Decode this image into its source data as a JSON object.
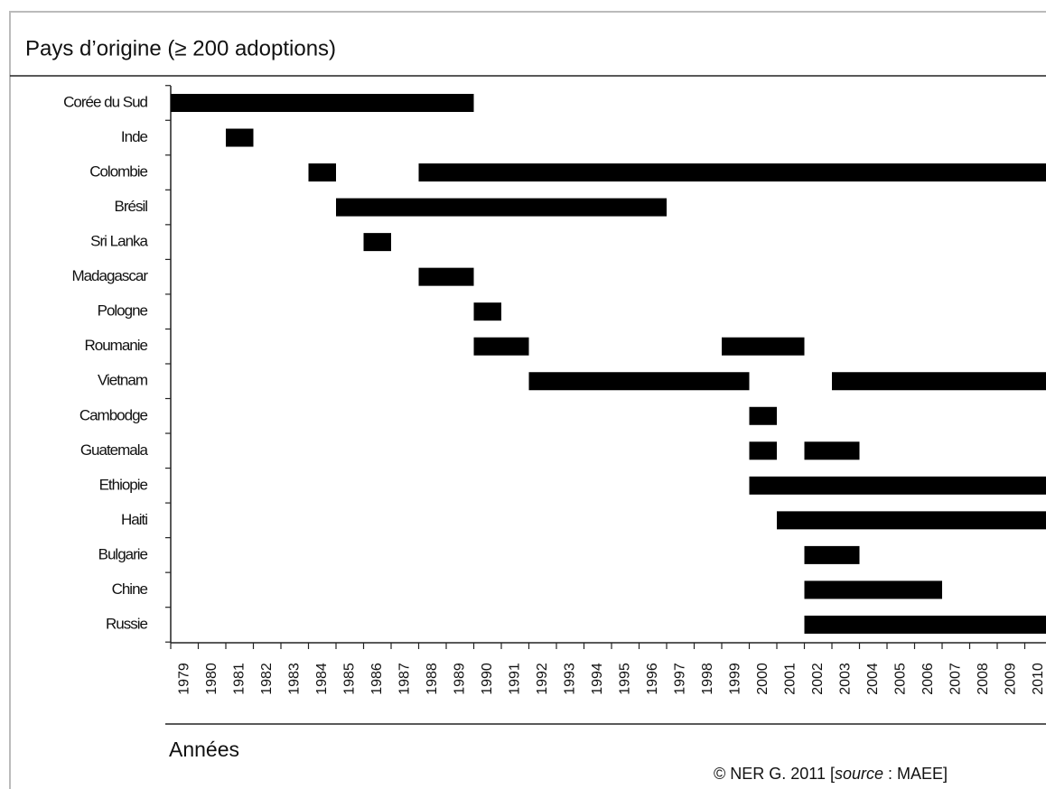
{
  "chart_data": {
    "type": "gantt",
    "title": "Pays d’origine (≥ 200 adoptions)",
    "x_label": "Années",
    "credit": [
      "© NER G. 2011 [",
      "source",
      " : MAEE]"
    ],
    "color": "#000000",
    "categories": [
      "Corée  du Sud",
      "Inde",
      "Colombie",
      "Brésil",
      "Sri Lanka",
      "Madagascar",
      "Pologne",
      "Roumanie",
      "Vietnam",
      "Cambodge",
      "Guatemala",
      "Ethiopie",
      "Haiti",
      "Bulgarie",
      "Chine",
      "Russie"
    ],
    "ranges": [
      [
        [
          1979,
          1990
        ]
      ],
      [
        [
          1981,
          1982
        ]
      ],
      [
        [
          1984,
          1985
        ],
        [
          1988,
          2011
        ]
      ],
      [
        [
          1985,
          1997
        ]
      ],
      [
        [
          1986,
          1987
        ]
      ],
      [
        [
          1988,
          1990
        ]
      ],
      [
        [
          1990,
          1991
        ]
      ],
      [
        [
          1990,
          1992
        ],
        [
          1999,
          2002
        ]
      ],
      [
        [
          1992,
          2000
        ],
        [
          2003,
          2011
        ]
      ],
      [
        [
          2000,
          2001
        ]
      ],
      [
        [
          2000,
          2001
        ],
        [
          2002,
          2004
        ]
      ],
      [
        [
          2000,
          2011
        ]
      ],
      [
        [
          2001,
          2011
        ]
      ],
      [
        [
          2002,
          2004
        ]
      ],
      [
        [
          2002,
          2007
        ]
      ],
      [
        [
          2002,
          2011
        ]
      ]
    ],
    "xlim": [
      1979,
      2011
    ],
    "xticks": [
      1979,
      1980,
      1981,
      1982,
      1983,
      1984,
      1985,
      1986,
      1987,
      1988,
      1989,
      1990,
      1991,
      1992,
      1993,
      1994,
      1995,
      1996,
      1997,
      1998,
      1999,
      2000,
      2001,
      2002,
      2003,
      2004,
      2005,
      2006,
      2007,
      2008,
      2009,
      2010
    ]
  }
}
